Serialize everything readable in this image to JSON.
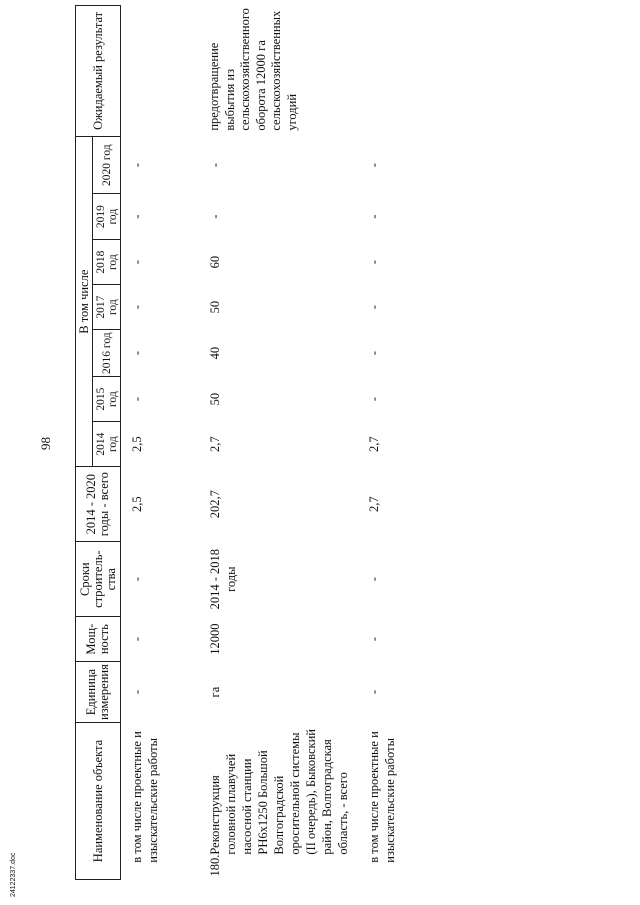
{
  "page_number": "98",
  "footer": "24122337.doc",
  "header": {
    "name": "Наименование объекта",
    "unit": "Единица измерения",
    "capacity": "Мощ-ность",
    "period": "Сроки строитель-ства",
    "total": "2014 - 2020 годы - всего",
    "including": "В том числе",
    "years": [
      "2014 год",
      "2015 год",
      "2016 год",
      "2017 год",
      "2018 год",
      "2019 год",
      "2020 год"
    ],
    "result": "Ожидаемый результат"
  },
  "rows": [
    {
      "num": "",
      "name": "в том числе проектные и изыскательские работы",
      "unit": "-",
      "capacity": "-",
      "period": "-",
      "total": "2,5",
      "years": [
        "2,5",
        "-",
        "-",
        "-",
        "-",
        "-",
        "-"
      ],
      "result": ""
    },
    {
      "num": "180.",
      "name": "Реконструкция головной плавучей насосной станции РН6х1250 Большой Волгоградской оросительной системы (II очередь), Быковский район, Волгоградская область, - всего",
      "unit": "га",
      "capacity": "12000",
      "period": "2014 - 2018 годы",
      "total": "202,7",
      "years": [
        "2,7",
        "50",
        "40",
        "50",
        "60",
        "-",
        "-"
      ],
      "result": "предотвращение выбытия из сельскохозяйственного оборота 12000 га сельскохозяйственных угодий"
    },
    {
      "num": "",
      "name": "в том числе проектные и изыскательские работы",
      "unit": "-",
      "capacity": "-",
      "period": "-",
      "total": "2,7",
      "years": [
        "2,7",
        "-",
        "-",
        "-",
        "-",
        "-",
        "-"
      ],
      "result": ""
    }
  ]
}
